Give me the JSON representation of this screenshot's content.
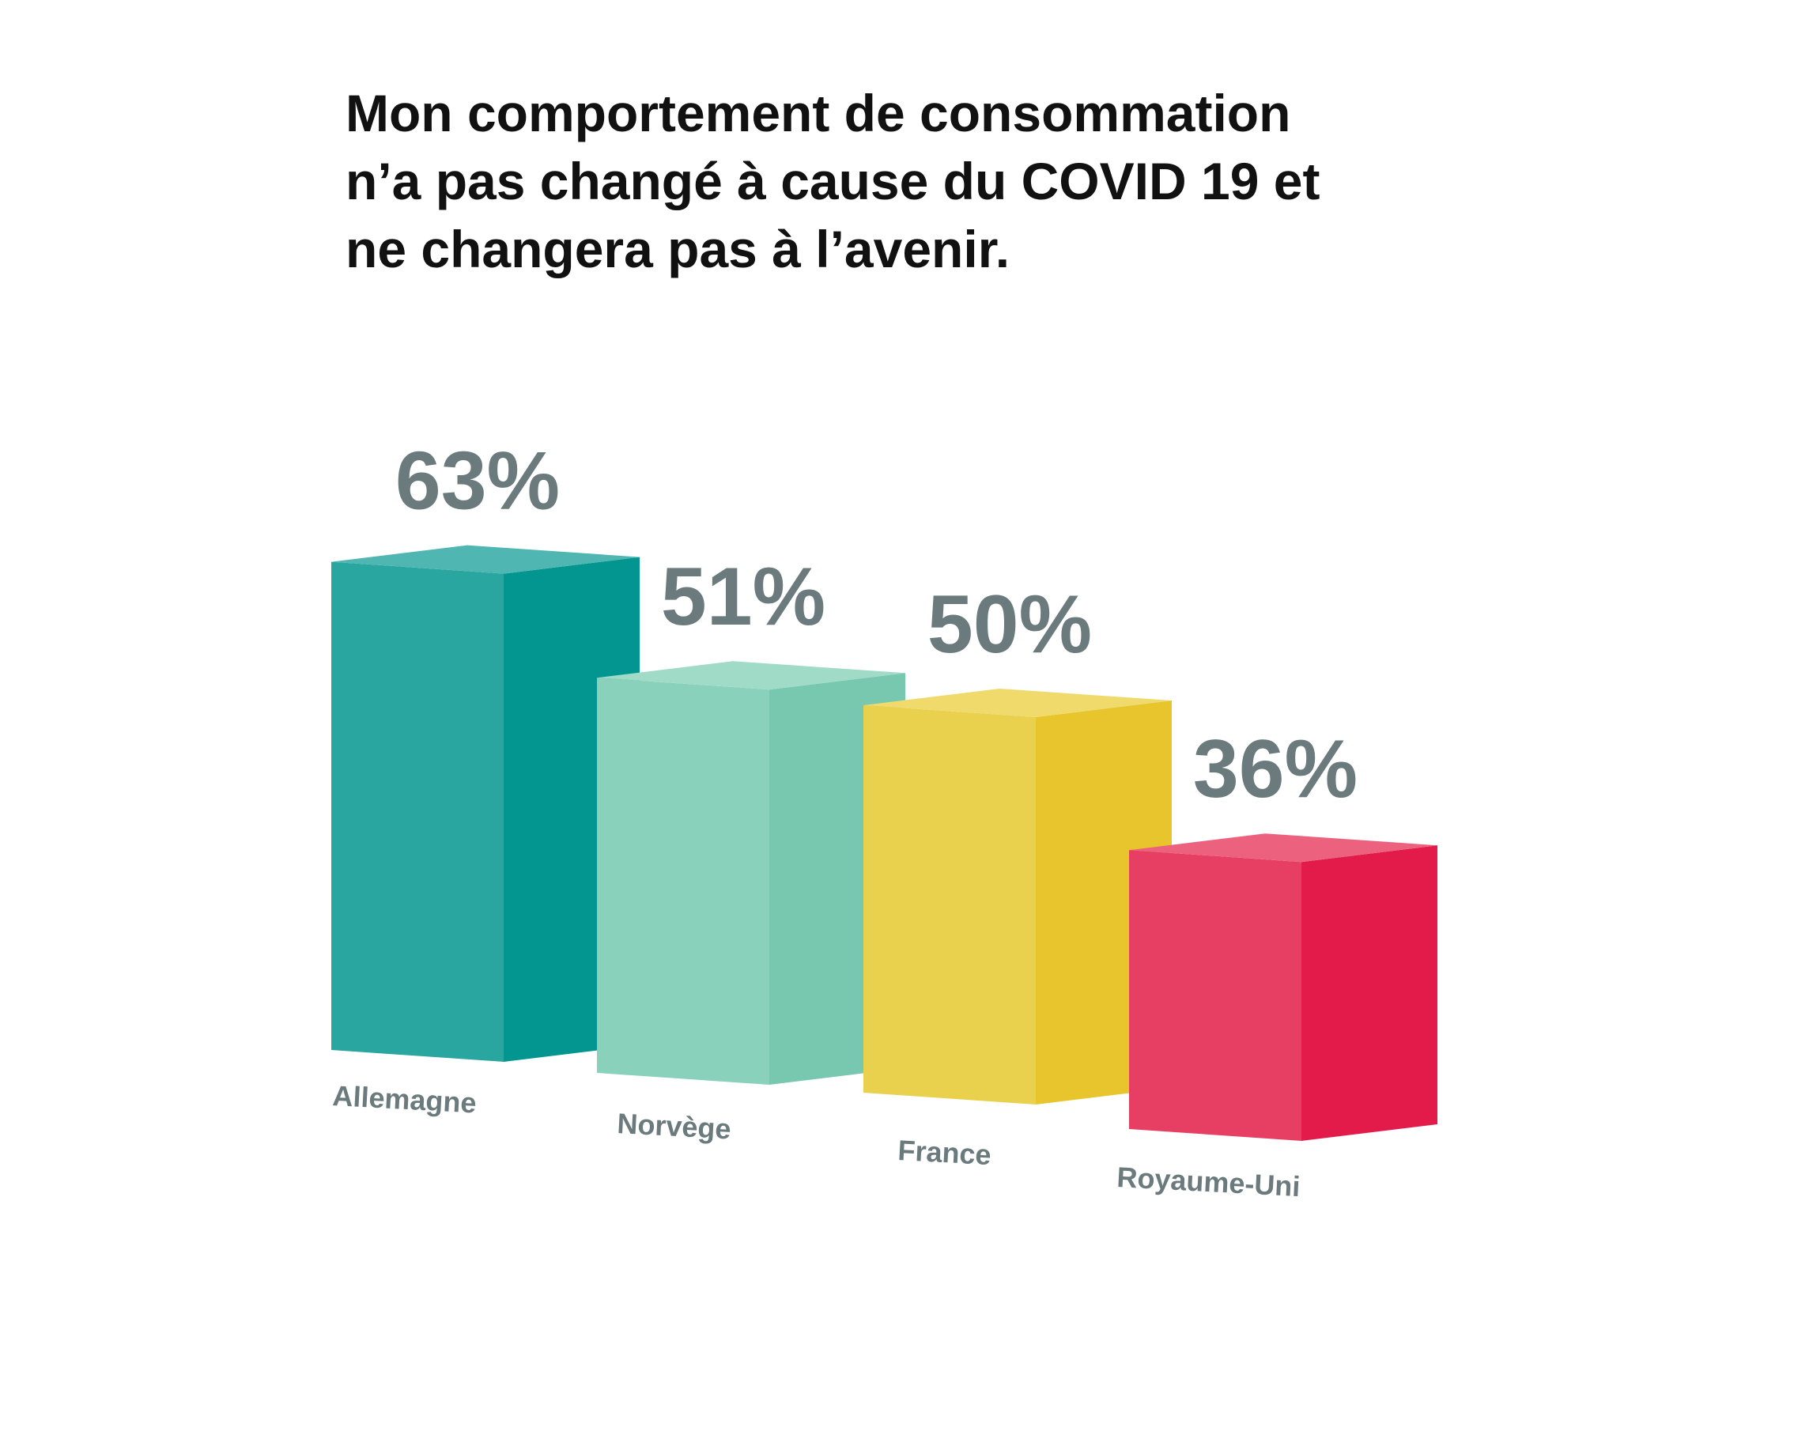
{
  "chart_data": {
    "type": "bar",
    "title_lines": [
      "Mon comportement de consommation",
      "n’a pas changé à cause du COVID 19 et",
      "ne changera pas à l’avenir."
    ],
    "categories": [
      "Allemagne",
      "Norvège",
      "France",
      "Royaume-Uni"
    ],
    "values": [
      63,
      51,
      50,
      36
    ],
    "value_labels": [
      "63%",
      "51%",
      "50%",
      "36%"
    ],
    "unit": "%",
    "colors": [
      {
        "front": "#2aa6a0",
        "side": "#039690",
        "top": "#4fb6b1"
      },
      {
        "front": "#8ad1bb",
        "side": "#77c8ae",
        "top": "#a0dbc8"
      },
      {
        "front": "#ead14d",
        "side": "#e8c52c",
        "top": "#f0da6c"
      },
      {
        "front": "#e73f63",
        "side": "#e31b4a",
        "top": "#ec617e"
      }
    ],
    "label_color": "#6b7a7d"
  }
}
